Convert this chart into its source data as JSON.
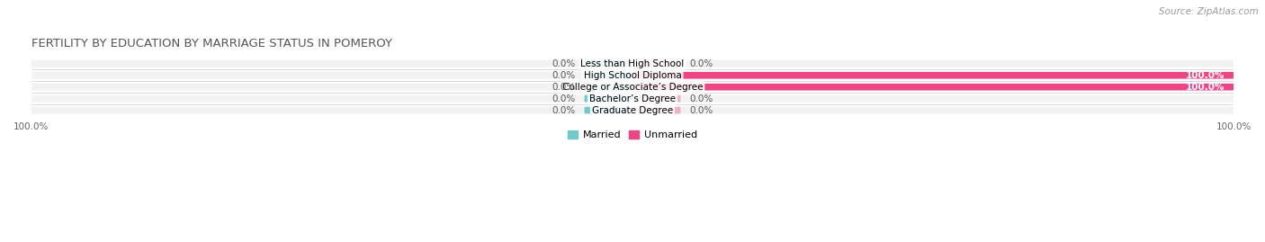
{
  "title": "FERTILITY BY EDUCATION BY MARRIAGE STATUS IN POMEROY",
  "source": "Source: ZipAtlas.com",
  "categories": [
    "Less than High School",
    "High School Diploma",
    "College or Associate’s Degree",
    "Bachelor’s Degree",
    "Graduate Degree"
  ],
  "married_values": [
    0.0,
    0.0,
    0.0,
    0.0,
    0.0
  ],
  "unmarried_values": [
    0.0,
    100.0,
    100.0,
    0.0,
    0.0
  ],
  "married_color": "#72C9CA",
  "unmarried_color_full": "#EE4585",
  "unmarried_color_light": "#F4AECB",
  "bar_bg_color": "#E8E8E8",
  "row_bg_color": "#F2F2F2",
  "xlim": [
    -100,
    100
  ],
  "legend_married": "Married",
  "legend_unmarried": "Unmarried",
  "title_fontsize": 9.5,
  "label_fontsize": 7.5,
  "tick_fontsize": 7.5,
  "source_fontsize": 7.5,
  "married_stub": 8,
  "unmarried_stub": 8
}
